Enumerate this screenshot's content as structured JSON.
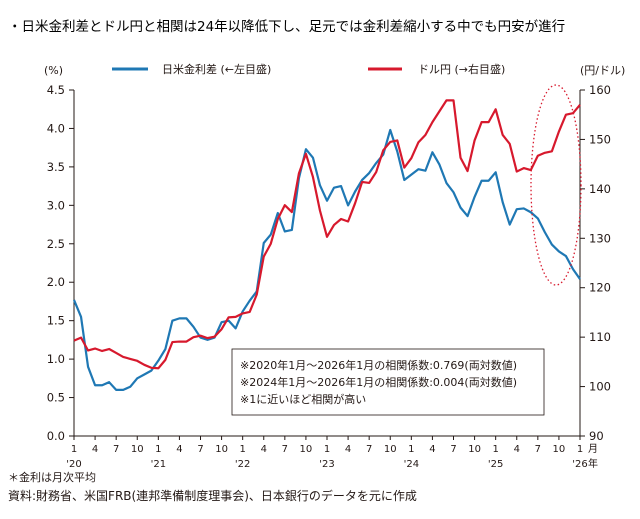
{
  "title": "・日米金利差とドル円と相関は24年以降低下し、足元では金利差縮小する中でも円安が進行",
  "footnote": "＊金利は月次平均",
  "source": "資料:財務省、米国FRB(連邦準備制度理事会)、日本銀行のデータを元に作成",
  "chart_data": {
    "type": "line",
    "y_left": {
      "unit": "(%)",
      "min": 0.0,
      "max": 4.5,
      "ticks": [
        "0.0",
        "0.5",
        "1.0",
        "1.5",
        "2.0",
        "2.5",
        "3.0",
        "3.5",
        "4.0",
        "4.5"
      ]
    },
    "y_right": {
      "unit": "(円/ドル)",
      "min": 90,
      "max": 160,
      "ticks": [
        "90",
        "100",
        "110",
        "120",
        "130",
        "140",
        "150",
        "160"
      ]
    },
    "x_axis": {
      "month_ticks": [
        "1",
        "4",
        "7",
        "10",
        "1",
        "4",
        "7",
        "10",
        "1",
        "4",
        "7",
        "10",
        "1",
        "4",
        "7",
        "10",
        "1",
        "4",
        "7",
        "10",
        "1",
        "4",
        "7",
        "10",
        "1"
      ],
      "year_labels": [
        "'20",
        "'21",
        "'22",
        "'23",
        "'24",
        "'25",
        "'26"
      ],
      "month_unit": "月",
      "year_unit": "年"
    },
    "x_start": "2020-01",
    "series": [
      {
        "name": "日米金利差 (←左目盛)",
        "axis": "left",
        "color": "#1f78b4",
        "values": [
          1.77,
          1.55,
          0.9,
          0.66,
          0.66,
          0.7,
          0.6,
          0.6,
          0.64,
          0.75,
          0.8,
          0.85,
          0.98,
          1.13,
          1.5,
          1.53,
          1.53,
          1.42,
          1.28,
          1.25,
          1.28,
          1.48,
          1.5,
          1.4,
          1.62,
          1.76,
          1.88,
          2.51,
          2.62,
          2.9,
          2.66,
          2.68,
          3.35,
          3.73,
          3.62,
          3.26,
          3.06,
          3.23,
          3.25,
          3.0,
          3.18,
          3.33,
          3.42,
          3.55,
          3.66,
          3.98,
          3.7,
          3.33,
          3.4,
          3.47,
          3.45,
          3.69,
          3.53,
          3.29,
          3.17,
          2.97,
          2.86,
          3.11,
          3.32,
          3.32,
          3.43,
          3.04,
          2.75,
          2.95,
          2.96,
          2.91,
          2.83,
          2.65,
          2.49,
          2.4,
          2.34,
          2.17,
          2.04
        ]
      },
      {
        "name": "ドル円 (→右目盛)",
        "axis": "right",
        "color": "#d7192d",
        "values": [
          109.3,
          109.9,
          107.3,
          107.7,
          107.2,
          107.6,
          106.8,
          106.0,
          105.6,
          105.2,
          104.4,
          103.8,
          103.7,
          105.4,
          109.0,
          109.1,
          109.1,
          110.0,
          110.3,
          109.8,
          110.1,
          111.6,
          114.0,
          114.1,
          114.8,
          115.1,
          118.6,
          126.3,
          128.9,
          133.9,
          136.7,
          135.3,
          143.1,
          147.1,
          142.4,
          135.6,
          130.3,
          132.7,
          133.9,
          133.4,
          137.1,
          141.4,
          141.2,
          143.4,
          147.8,
          149.5,
          149.8,
          144.3,
          146.2,
          149.4,
          150.9,
          153.5,
          155.7,
          157.9,
          157.9,
          146.3,
          143.6,
          149.8,
          153.5,
          153.5,
          156.1,
          150.9,
          149.1,
          143.5,
          144.2,
          143.8,
          146.7,
          147.3,
          147.6,
          151.6,
          155.0,
          155.3,
          157.0
        ]
      }
    ],
    "annotation": [
      "※2020年1月～2026年1月の相関係数:0.769(両対数値)",
      "※2024年1月～2026年1月の相関係数:0.004(両対数値)",
      "※1に近いほど相関が高い"
    ],
    "highlight": "dotted red ellipse around 2025 right end",
    "grid": false,
    "legend": "top"
  }
}
